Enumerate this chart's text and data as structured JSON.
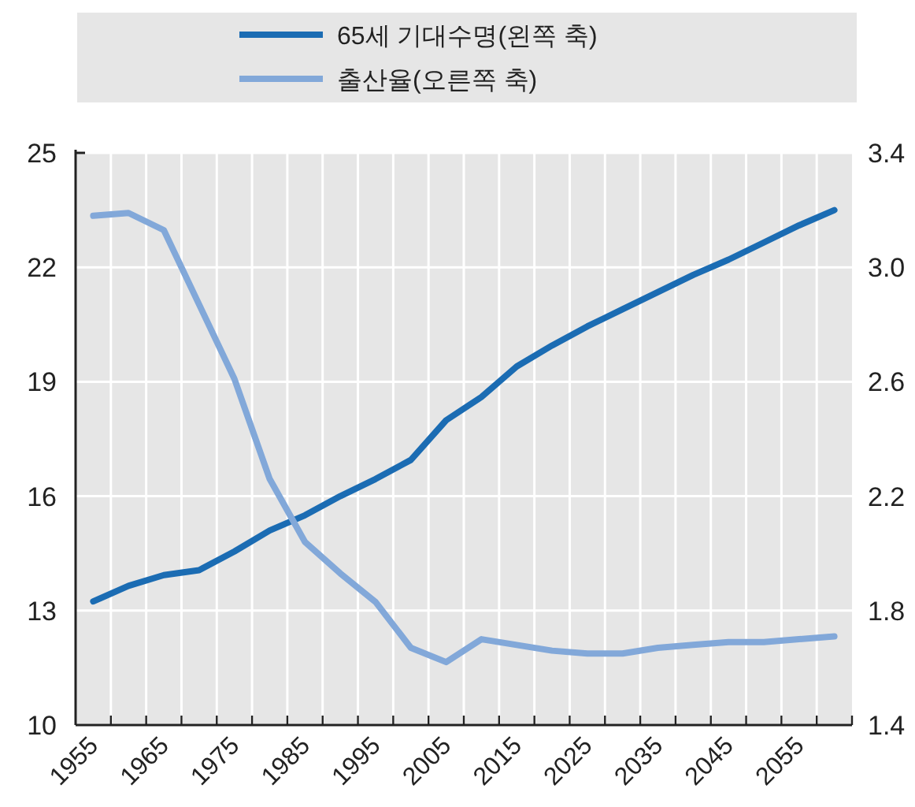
{
  "chart_data": {
    "type": "line",
    "categories": [
      "1955",
      null,
      "1965",
      null,
      "1975",
      null,
      "1985",
      null,
      "1995",
      null,
      "2005",
      null,
      "2015",
      null,
      "2025",
      null,
      "2035",
      null,
      "2045",
      null,
      "2055",
      null
    ],
    "series": [
      {
        "name": "65세 기대수명(왼쪽 축)",
        "color": "#1b6cb3",
        "values": [
          13.24,
          13.65,
          13.93,
          14.06,
          14.55,
          15.1,
          15.5,
          16.0,
          16.45,
          16.95,
          17.99,
          18.6,
          19.4,
          19.95,
          20.45,
          20.9,
          21.35,
          21.8,
          22.2,
          22.65,
          23.1,
          23.5
        ]
      },
      {
        "name": "출산율(오른쪽 축)",
        "color": "#82a8d9",
        "axis": "y2",
        "values": [
          3.18,
          3.19,
          3.13,
          2.87,
          2.61,
          2.26,
          2.04,
          1.93,
          1.83,
          1.67,
          1.62,
          1.7,
          1.68,
          1.66,
          1.65,
          1.65,
          1.67,
          1.68,
          1.69,
          1.69,
          1.7,
          1.71
        ]
      }
    ],
    "ylim": [
      10,
      25
    ],
    "yticks": [
      10,
      13,
      16,
      19,
      22,
      25
    ],
    "y2lim": [
      1.4,
      3.4
    ],
    "y2ticks": [
      1.4,
      1.8,
      2.2,
      2.6,
      {
        "value": 3,
        "label": "3.0"
      },
      3.4
    ],
    "grid": true,
    "legend": "top"
  }
}
